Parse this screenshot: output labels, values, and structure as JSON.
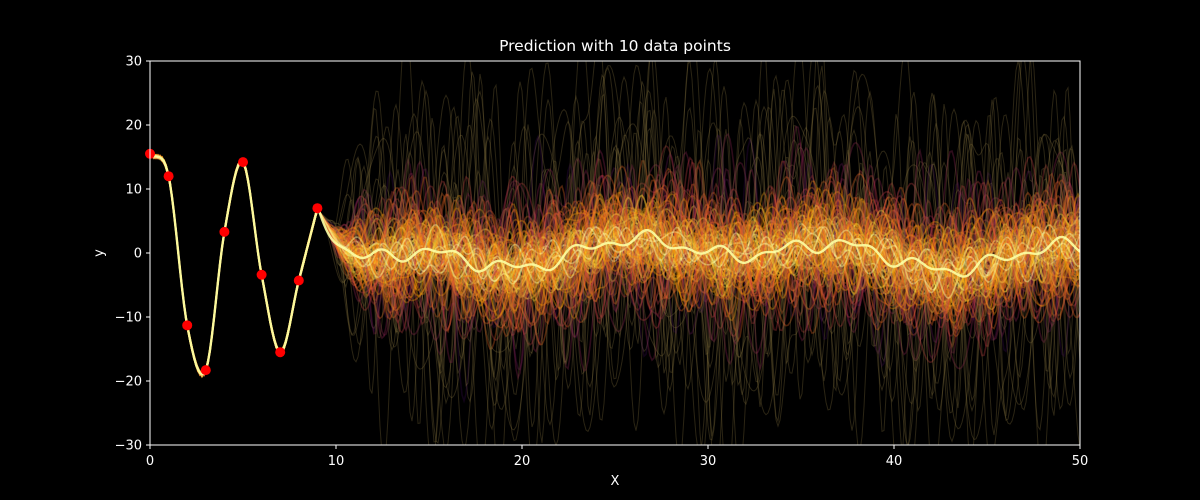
{
  "chart_data": {
    "type": "line",
    "title": "Prediction with 10 data points",
    "xlabel": "X",
    "ylabel": "y",
    "xlim": [
      0,
      50
    ],
    "ylim": [
      -30,
      30
    ],
    "xticks": [
      0,
      10,
      20,
      30,
      40,
      50
    ],
    "yticks": [
      -30,
      -20,
      -10,
      0,
      10,
      20,
      30
    ],
    "grid": false,
    "background": "#000000",
    "colormap": "inferno",
    "series": [
      {
        "kind": "observed-points",
        "color": "#ff0000",
        "x": [
          0,
          1,
          2,
          3,
          4,
          5,
          6,
          7,
          8,
          9
        ],
        "y": [
          15.5,
          12.0,
          -11.3,
          -18.3,
          3.3,
          14.2,
          -3.4,
          -15.5,
          -4.3,
          7.0
        ]
      }
    ]
  }
}
